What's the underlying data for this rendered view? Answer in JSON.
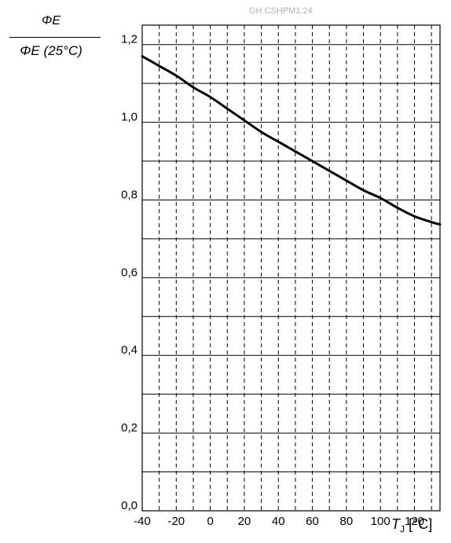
{
  "watermark": "GH CSHPM1.24",
  "ylabel": {
    "numerator": "ΦE",
    "denominator": "ΦE (25°C)"
  },
  "xlabel": {
    "symbol": "T",
    "subscript": "J",
    "unit": " [°C]"
  },
  "chart_data": {
    "type": "line",
    "title": "",
    "xlabel": "TJ [°C]",
    "ylabel": "ΦE / ΦE (25°C)",
    "xlim": [
      -40,
      135
    ],
    "ylim": [
      0,
      1.25
    ],
    "grid": true,
    "x_ticks": [
      -40,
      -20,
      0,
      20,
      40,
      60,
      80,
      100,
      120
    ],
    "x_tick_labels": [
      "-40",
      "-20",
      "0",
      "20",
      "40",
      "60",
      "80",
      "100",
      "120"
    ],
    "y_ticks": [
      0,
      0.2,
      0.4,
      0.6,
      0.8,
      1.0,
      1.2
    ],
    "y_tick_labels": [
      "0,0",
      "0,2",
      "0,4",
      "0,6",
      "0,8",
      "1,0",
      "1,2"
    ],
    "series": [
      {
        "x": [
          -40,
          -30,
          -20,
          -10,
          0,
          10,
          20,
          30,
          40,
          50,
          60,
          70,
          80,
          90,
          100,
          110,
          120,
          130,
          135
        ],
        "y": [
          1.17,
          1.145,
          1.12,
          1.09,
          1.065,
          1.035,
          1.005,
          0.975,
          0.95,
          0.925,
          0.9,
          0.875,
          0.85,
          0.825,
          0.805,
          0.78,
          0.758,
          0.743,
          0.737
        ]
      }
    ]
  }
}
